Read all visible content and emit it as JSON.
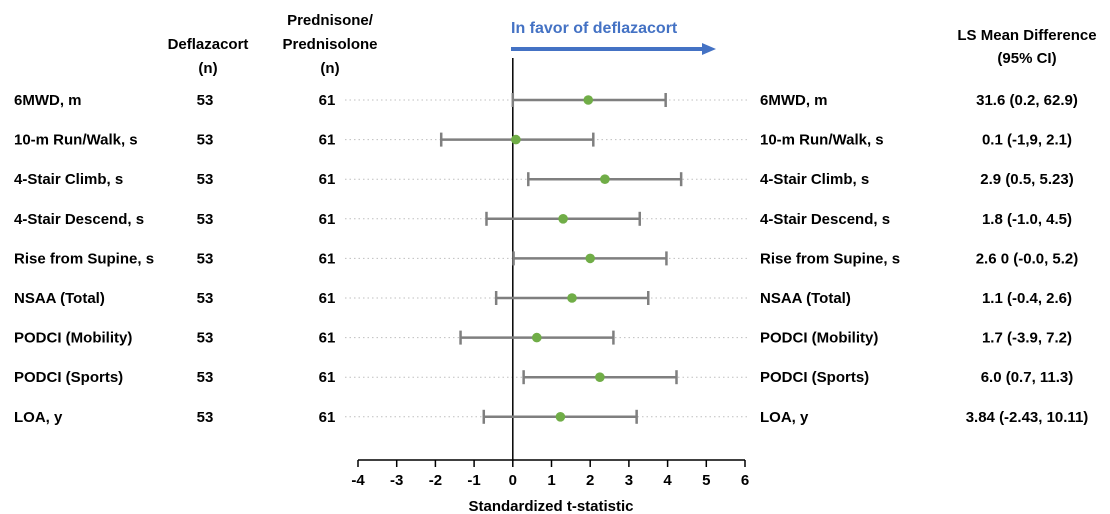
{
  "headers": {
    "deflazacort": [
      "Deflazacort",
      "(n)"
    ],
    "prednisone": [
      "Prednisone/",
      "Prednisolone",
      "(n)"
    ],
    "ls_mean": [
      "LS Mean Difference",
      "(95% CI)"
    ]
  },
  "favor_label": "In favor of deflazacort",
  "colors": {
    "favor": "#4472C4",
    "point": "#70AD47",
    "ci": "#7F7F7F",
    "dotted": "#BFBFBF",
    "axis": "#000000"
  },
  "chart_data": {
    "type": "scatter",
    "subtype": "forest-plot",
    "xlabel": "Standardized t-statistic",
    "xlim": [
      -4,
      6
    ],
    "xticks": [
      -4,
      -3,
      -2,
      -1,
      0,
      1,
      2,
      3,
      4,
      5,
      6
    ],
    "reference_line": 0,
    "rows": [
      {
        "label": "6MWD, m",
        "n_deflazacort": "53",
        "n_prednisone": "61",
        "estimate": 1.95,
        "ci_low": 0.0,
        "ci_high": 3.95,
        "ls_mean_text": "31.6 (0.2, 62.9)"
      },
      {
        "label": "10-m Run/Walk, s",
        "n_deflazacort": "53",
        "n_prednisone": "61",
        "estimate": 0.08,
        "ci_low": -1.85,
        "ci_high": 2.08,
        "ls_mean_text": "0.1 (-1,9, 2.1)"
      },
      {
        "label": "4-Stair Climb, s",
        "n_deflazacort": "53",
        "n_prednisone": "61",
        "estimate": 2.38,
        "ci_low": 0.4,
        "ci_high": 4.35,
        "ls_mean_text": "2.9 (0.5, 5.23)"
      },
      {
        "label": "4-Stair Descend, s",
        "n_deflazacort": "53",
        "n_prednisone": "61",
        "estimate": 1.3,
        "ci_low": -0.68,
        "ci_high": 3.28,
        "ls_mean_text": "1.8 (-1.0, 4.5)"
      },
      {
        "label": "Rise from Supine, s",
        "n_deflazacort": "53",
        "n_prednisone": "61",
        "estimate": 2.0,
        "ci_low": 0.02,
        "ci_high": 3.97,
        "ls_mean_text": "2.6 0 (-0.0, 5.2)"
      },
      {
        "label": "NSAA (Total)",
        "n_deflazacort": "53",
        "n_prednisone": "61",
        "estimate": 1.53,
        "ci_low": -0.43,
        "ci_high": 3.5,
        "ls_mean_text": "1.1 (-0.4, 2.6)"
      },
      {
        "label": "PODCI (Mobility)",
        "n_deflazacort": "53",
        "n_prednisone": "61",
        "estimate": 0.62,
        "ci_low": -1.35,
        "ci_high": 2.6,
        "ls_mean_text": "1.7 (-3.9, 7.2)"
      },
      {
        "label": "PODCI (Sports)",
        "n_deflazacort": "53",
        "n_prednisone": "61",
        "estimate": 2.25,
        "ci_low": 0.28,
        "ci_high": 4.23,
        "ls_mean_text": "6.0 (0.7, 11.3)"
      },
      {
        "label": "LOA, y",
        "n_deflazacort": "53",
        "n_prednisone": "61",
        "estimate": 1.23,
        "ci_low": -0.75,
        "ci_high": 3.2,
        "ls_mean_text": "3.84 (-2.43, 10.11)"
      }
    ]
  }
}
